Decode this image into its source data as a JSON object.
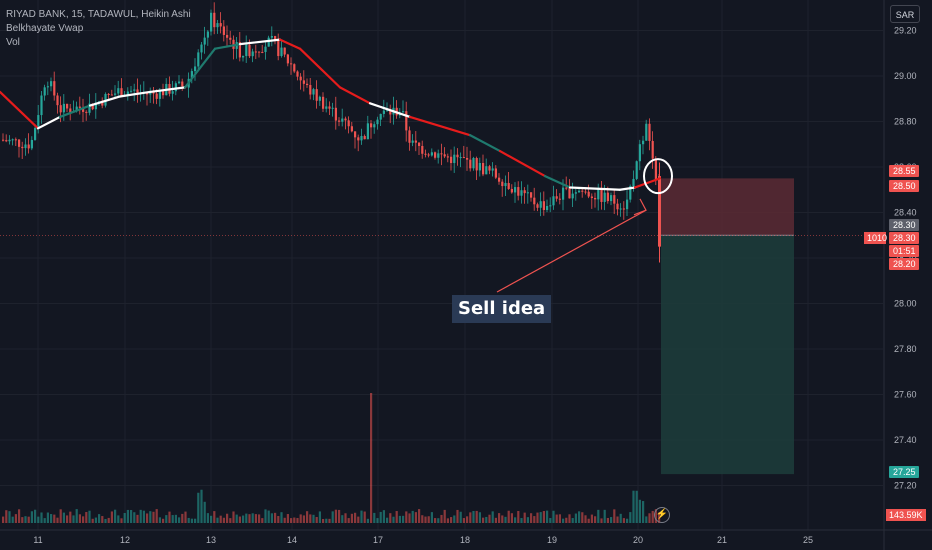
{
  "header": {
    "symbol_line": "RIYAD BANK, 15, TADAWUL, Heikin Ashi",
    "indicator": "Belkhayate Vwap",
    "volume_label": "Vol",
    "currency": "SAR"
  },
  "annotation": {
    "text": "Sell idea"
  },
  "price_tags": {
    "stop": "28.55",
    "entry_top": "28.50",
    "last": "28.30",
    "last_label": "1010",
    "countdown": "01:51",
    "low": "28.20",
    "mid": "28.30",
    "target": "27.25",
    "volume": "143.59K"
  },
  "colors": {
    "up": "#26a69a",
    "down": "#ef5350",
    "vwap": "#e61c1c",
    "vwap_neutral": "#ffffff",
    "vwap_up": "#1f7a6e",
    "stop_zone": "#5c2a34",
    "target_zone": "#1d3b3a",
    "background": "#131722"
  },
  "chart_data": {
    "type": "candlestick",
    "y_axis": {
      "ticks": [
        "29.20",
        "29.00",
        "28.80",
        "28.60",
        "28.40",
        "28.20",
        "28.00",
        "27.80",
        "27.60",
        "27.40",
        "27.20"
      ],
      "range": [
        27.13,
        29.31
      ]
    },
    "x_axis": {
      "ticks": [
        "11",
        "12",
        "13",
        "14",
        "17",
        "18",
        "19",
        "20",
        "21",
        "25"
      ]
    },
    "position": {
      "kind": "short",
      "entry": 28.3,
      "stop": 28.55,
      "target": 27.25
    },
    "current_price": 28.3,
    "volume_spike": "17"
  }
}
